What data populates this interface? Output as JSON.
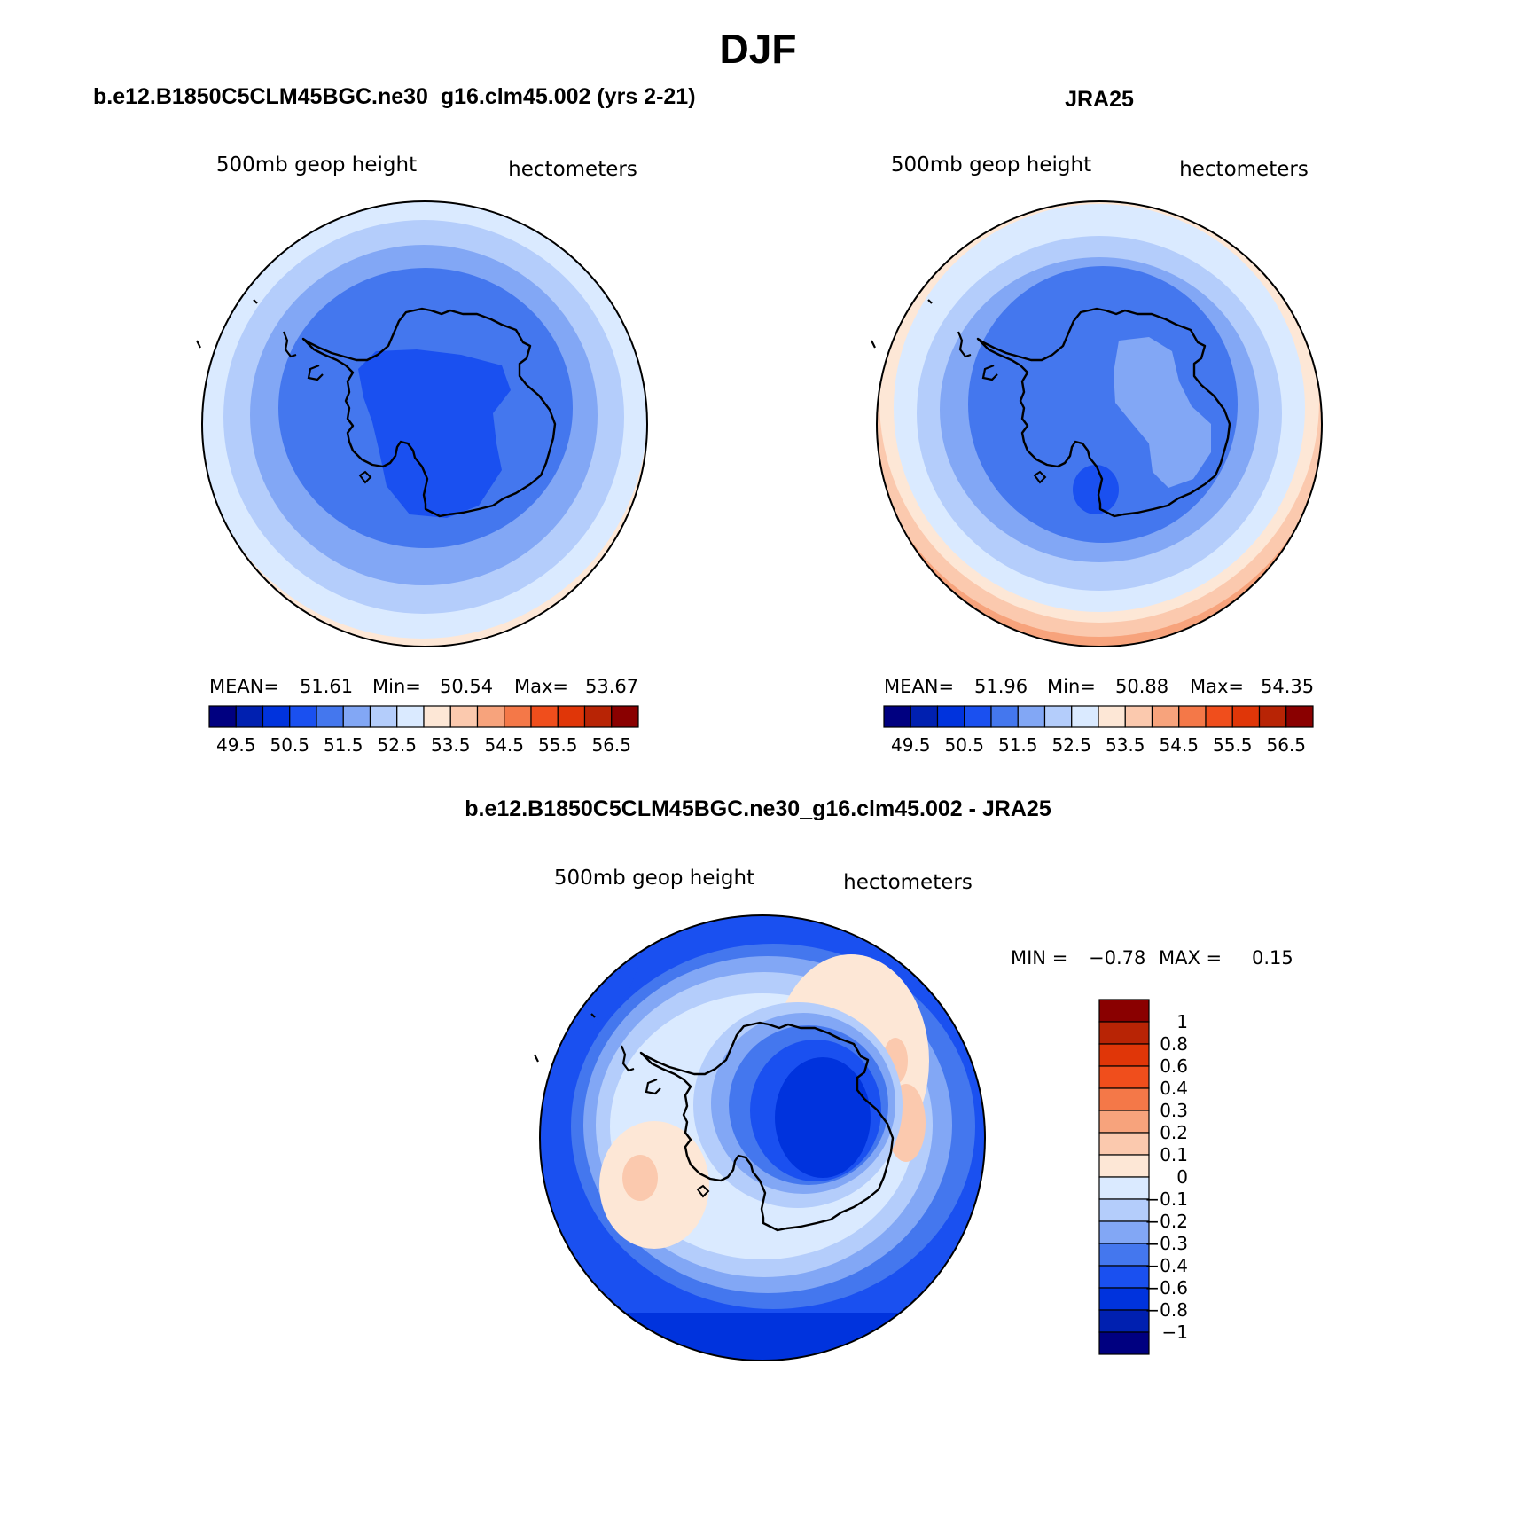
{
  "title": "DJF",
  "panels": [
    {
      "title": "b.e12.B1850C5CLM45BGC.ne30_g16.clm45.002 (yrs 2-21)",
      "variable": "500mb geop height",
      "units": "hectometers",
      "stats": {
        "mean_label": "MEAN=",
        "mean": "51.61",
        "min_label": "Min=",
        "min": "50.54",
        "max_label": "Max=",
        "max": "53.67"
      },
      "field_rings_hm": [
        53.0,
        52.75,
        52.25,
        51.75,
        51.25,
        51.0
      ],
      "colorbar_labels": [
        "49.5",
        "50.5",
        "51.5",
        "52.5",
        "53.5",
        "54.5",
        "55.5",
        "56.5"
      ]
    },
    {
      "title": "JRA25",
      "variable": "500mb geop height",
      "units": "hectometers",
      "stats": {
        "mean_label": "MEAN=",
        "mean": "51.96",
        "min_label": "Min=",
        "min": "50.88",
        "max_label": "Max=",
        "max": "54.35"
      },
      "field_rings_hm": [
        53.75,
        53.25,
        52.75,
        52.25,
        51.75,
        51.25
      ],
      "colorbar_labels": [
        "49.5",
        "50.5",
        "51.5",
        "52.5",
        "53.5",
        "54.5",
        "55.5",
        "56.5"
      ]
    },
    {
      "title": "b.e12.B1850C5CLM45BGC.ne30_g16.clm45.002 - JRA25",
      "variable": "500mb geop height",
      "units": "hectometers",
      "stats": {
        "min_label": "MIN =",
        "min": "−0.78",
        "max_label": "MAX =",
        "max": "0.15"
      },
      "colorbar_labels": [
        "1",
        "0.8",
        "0.6",
        "0.4",
        "0.3",
        "0.2",
        "0.1",
        "0",
        "−0.1",
        "−0.2",
        "−0.3",
        "−0.4",
        "−0.6",
        "−0.8",
        "−1"
      ]
    }
  ],
  "colors": {
    "field_palette": [
      "#000080",
      "#0020b0",
      "#0033dd",
      "#1a50f0",
      "#4477ee",
      "#82a7f5",
      "#b4cdfb",
      "#daeaff",
      "#fde7d6",
      "#fbc9ae",
      "#f7a37c",
      "#f47848",
      "#f04e1c",
      "#e03608",
      "#b82405",
      "#8a0000"
    ],
    "diff_palette": [
      "#8a0000",
      "#b82405",
      "#e03608",
      "#f04e1c",
      "#f47848",
      "#f7a37c",
      "#fbc9ae",
      "#fde7d6",
      "#daeaff",
      "#b4cdfb",
      "#82a7f5",
      "#4477ee",
      "#1a50f0",
      "#0033dd",
      "#0020b0",
      "#000080"
    ],
    "coastline": "#000000"
  }
}
